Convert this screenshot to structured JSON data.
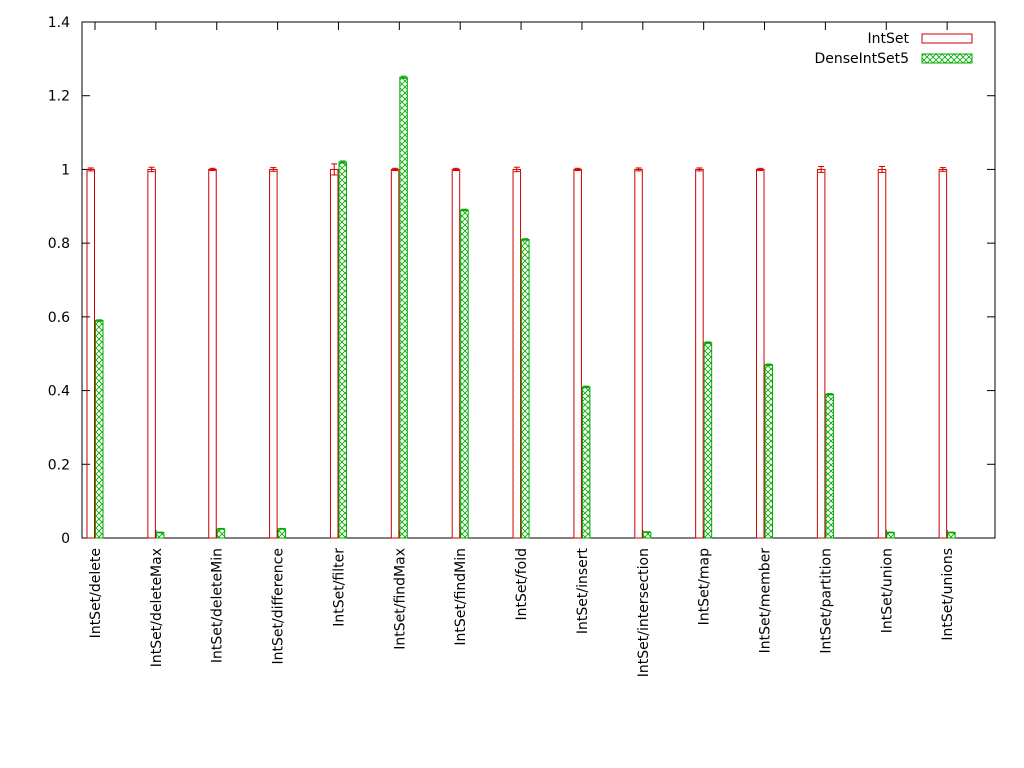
{
  "chart_data": {
    "type": "bar",
    "title": "",
    "xlabel": "",
    "ylabel": "",
    "ylim": [
      0,
      1.4
    ],
    "yticks": [
      "0",
      "0.2",
      "0.4",
      "0.6",
      "0.8",
      "1",
      "1.2",
      "1.4"
    ],
    "grid": false,
    "legend_position": "top-right",
    "categories": [
      "IntSet/delete",
      "IntSet/deleteMax",
      "IntSet/deleteMin",
      "IntSet/difference",
      "IntSet/filter",
      "IntSet/findMax",
      "IntSet/findMin",
      "IntSet/fold",
      "IntSet/insert",
      "IntSet/intersection",
      "IntSet/map",
      "IntSet/member",
      "IntSet/partition",
      "IntSet/union",
      "IntSet/unions"
    ],
    "series": [
      {
        "name": "IntSet",
        "color": "#cc0000",
        "pattern": "hollow",
        "values": [
          1,
          1,
          1,
          1,
          1,
          1,
          1,
          1,
          1,
          1,
          1,
          1,
          1,
          1,
          1
        ],
        "errors": [
          0.004,
          0.006,
          0.003,
          0.005,
          0.015,
          0.003,
          0.003,
          0.006,
          0.003,
          0.004,
          0.004,
          0.003,
          0.008,
          0.008,
          0.005
        ]
      },
      {
        "name": "DenseIntSet5",
        "color": "#00aa00",
        "pattern": "crosshatch",
        "values": [
          0.59,
          0.015,
          0.025,
          0.025,
          1.02,
          1.25,
          0.89,
          0.81,
          0.41,
          0.016,
          0.53,
          0.47,
          0.39,
          0.015,
          0.015
        ],
        "errors": [
          0.002,
          0.001,
          0.001,
          0.001,
          0.003,
          0.003,
          0.002,
          0.002,
          0.002,
          0.001,
          0.002,
          0.002,
          0.002,
          0.001,
          0.001
        ]
      }
    ]
  }
}
